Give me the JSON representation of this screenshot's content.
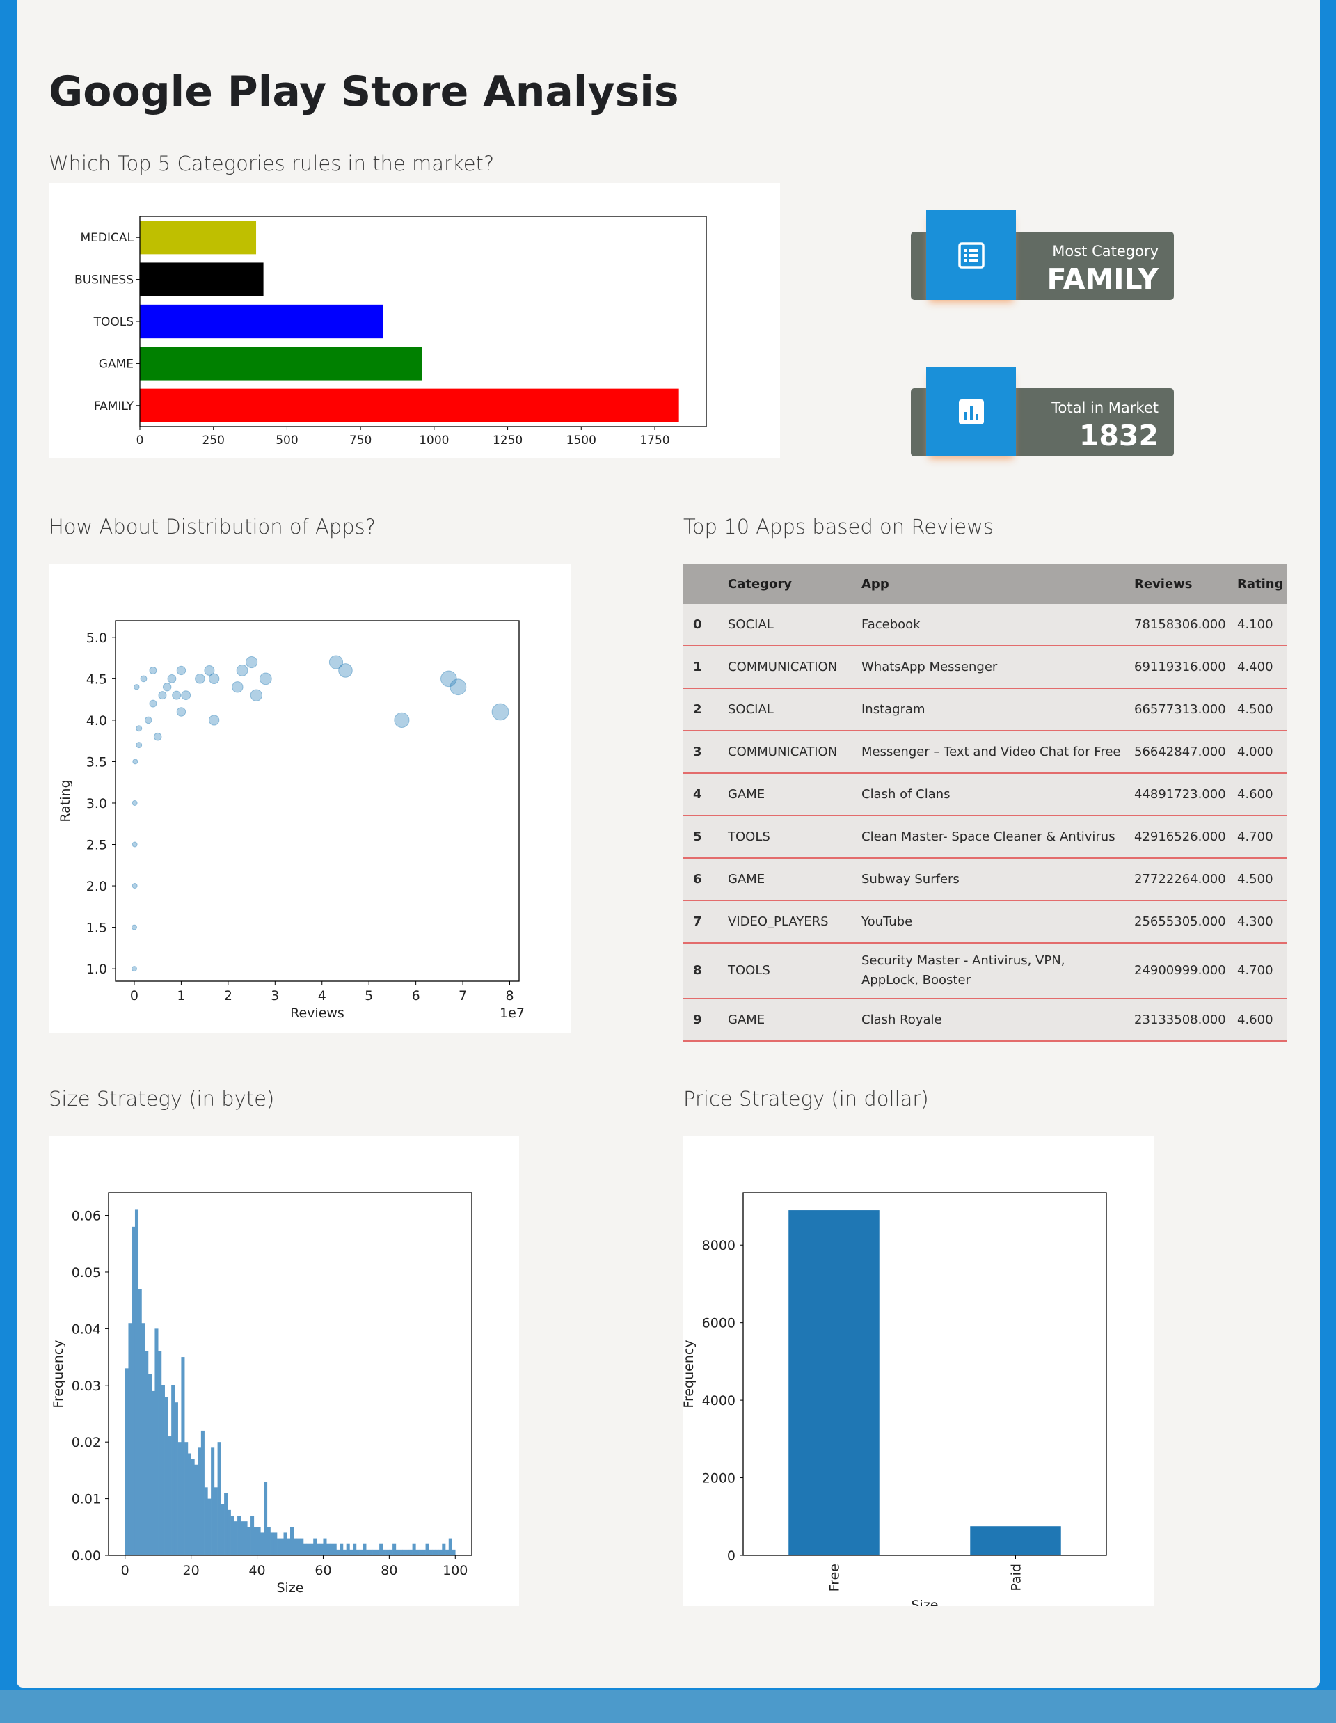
{
  "page": {
    "title": "Google Play Store Analysis",
    "sections": {
      "top_categories": "Which Top 5 Categories rules in the market?",
      "distribution": "How About Distribution of Apps?",
      "top_reviews": "Top 10 Apps based on Reviews",
      "size_strategy": "Size Strategy (in byte)",
      "price_strategy": "Price Strategy (in dollar)"
    }
  },
  "stats": [
    {
      "label": "Most Category",
      "value": "FAMILY",
      "icon": "list-icon"
    },
    {
      "label": "Total in Market",
      "value": "1832",
      "icon": "bar-chart-icon"
    }
  ],
  "colors": {
    "accent": "#1a90d9",
    "card_dark": "#626b63",
    "page_bg": "#f5f4f2",
    "frame": "#1588d8"
  },
  "table": {
    "headers": [
      "",
      "Category",
      "App",
      "Reviews",
      "Rating"
    ],
    "rows": [
      {
        "idx": "0",
        "category": "SOCIAL",
        "app": "Facebook",
        "reviews": "78158306.000",
        "rating": "4.100"
      },
      {
        "idx": "1",
        "category": "COMMUNICATION",
        "app": "WhatsApp Messenger",
        "reviews": "69119316.000",
        "rating": "4.400"
      },
      {
        "idx": "2",
        "category": "SOCIAL",
        "app": "Instagram",
        "reviews": "66577313.000",
        "rating": "4.500"
      },
      {
        "idx": "3",
        "category": "COMMUNICATION",
        "app": "Messenger – Text and Video Chat for Free",
        "reviews": "56642847.000",
        "rating": "4.000"
      },
      {
        "idx": "4",
        "category": "GAME",
        "app": "Clash of Clans",
        "reviews": "44891723.000",
        "rating": "4.600"
      },
      {
        "idx": "5",
        "category": "TOOLS",
        "app": "Clean Master- Space Cleaner & Antivirus",
        "reviews": "42916526.000",
        "rating": "4.700"
      },
      {
        "idx": "6",
        "category": "GAME",
        "app": "Subway Surfers",
        "reviews": "27722264.000",
        "rating": "4.500"
      },
      {
        "idx": "7",
        "category": "VIDEO_PLAYERS",
        "app": "YouTube",
        "reviews": "25655305.000",
        "rating": "4.300"
      },
      {
        "idx": "8",
        "category": "TOOLS",
        "app": "Security Master - Antivirus, VPN, AppLock, Booster",
        "reviews": "24900999.000",
        "rating": "4.700"
      },
      {
        "idx": "9",
        "category": "GAME",
        "app": "Clash Royale",
        "reviews": "23133508.000",
        "rating": "4.600"
      }
    ]
  },
  "chart_data": [
    {
      "type": "bar",
      "orientation": "horizontal",
      "categories": [
        "FAMILY",
        "GAME",
        "TOOLS",
        "BUSINESS",
        "MEDICAL"
      ],
      "values": [
        1832,
        959,
        827,
        420,
        395
      ],
      "colors": [
        "#ff0000",
        "#008000",
        "#0000ff",
        "#000000",
        "#bfbf00"
      ],
      "xlim": [
        0,
        1925
      ],
      "xticks": [
        "0",
        "250",
        "500",
        "750",
        "1000",
        "1250",
        "1500",
        "1750"
      ],
      "title": "",
      "xlabel": "",
      "ylabel": ""
    },
    {
      "type": "scatter",
      "xlabel": "Reviews",
      "ylabel": "Rating",
      "x_multiplier_label": "1e7",
      "xlim": [
        -0.4,
        8.2
      ],
      "ylim": [
        0.85,
        5.2
      ],
      "xticks": [
        "0",
        "1",
        "2",
        "3",
        "4",
        "5",
        "6",
        "7",
        "8"
      ],
      "yticks": [
        "1.0",
        "1.5",
        "2.0",
        "2.5",
        "3.0",
        "3.5",
        "4.0",
        "4.5",
        "5.0"
      ],
      "color": "#1f77b4",
      "points": [
        {
          "x": 7.8,
          "y": 4.1
        },
        {
          "x": 6.9,
          "y": 4.4
        },
        {
          "x": 6.7,
          "y": 4.5
        },
        {
          "x": 5.7,
          "y": 4.0
        },
        {
          "x": 4.5,
          "y": 4.6
        },
        {
          "x": 4.3,
          "y": 4.7
        },
        {
          "x": 2.8,
          "y": 4.5
        },
        {
          "x": 2.6,
          "y": 4.3
        },
        {
          "x": 2.5,
          "y": 4.7
        },
        {
          "x": 2.2,
          "y": 4.4
        },
        {
          "x": 2.3,
          "y": 4.6
        },
        {
          "x": 1.7,
          "y": 4.5
        },
        {
          "x": 1.7,
          "y": 4.0
        },
        {
          "x": 1.6,
          "y": 4.6
        },
        {
          "x": 1.4,
          "y": 4.5
        },
        {
          "x": 1.1,
          "y": 4.3
        },
        {
          "x": 1.0,
          "y": 4.1
        },
        {
          "x": 1.0,
          "y": 4.6
        },
        {
          "x": 0.9,
          "y": 4.3
        },
        {
          "x": 0.8,
          "y": 4.5
        },
        {
          "x": 0.7,
          "y": 4.4
        },
        {
          "x": 0.6,
          "y": 4.3
        },
        {
          "x": 0.5,
          "y": 3.8
        },
        {
          "x": 0.4,
          "y": 4.2
        },
        {
          "x": 0.4,
          "y": 4.6
        },
        {
          "x": 0.3,
          "y": 4.0
        },
        {
          "x": 0.2,
          "y": 4.5
        },
        {
          "x": 0.1,
          "y": 3.9
        },
        {
          "x": 0.1,
          "y": 3.7
        },
        {
          "x": 0.05,
          "y": 4.4
        },
        {
          "x": 0.02,
          "y": 3.5
        },
        {
          "x": 0.01,
          "y": 3.0
        },
        {
          "x": 0.01,
          "y": 2.5
        },
        {
          "x": 0.01,
          "y": 2.0
        },
        {
          "x": 0.0,
          "y": 1.5
        },
        {
          "x": 0.0,
          "y": 1.0
        }
      ]
    },
    {
      "type": "bar",
      "subtype": "histogram",
      "xlabel": "Size",
      "ylabel": "Frequency",
      "xlim": [
        -5,
        105
      ],
      "ylim": [
        0,
        0.064
      ],
      "xticks": [
        "0",
        "20",
        "40",
        "60",
        "80",
        "100"
      ],
      "yticks": [
        "0.00",
        "0.01",
        "0.02",
        "0.03",
        "0.04",
        "0.05",
        "0.06"
      ],
      "bin_width": 1,
      "bin_start": 0,
      "color": "#5a99c8",
      "values": [
        0.033,
        0.041,
        0.058,
        0.061,
        0.047,
        0.041,
        0.036,
        0.032,
        0.029,
        0.04,
        0.036,
        0.03,
        0.028,
        0.021,
        0.03,
        0.027,
        0.02,
        0.035,
        0.02,
        0.018,
        0.017,
        0.016,
        0.019,
        0.022,
        0.012,
        0.01,
        0.019,
        0.012,
        0.02,
        0.009,
        0.011,
        0.008,
        0.007,
        0.006,
        0.007,
        0.006,
        0.006,
        0.005,
        0.007,
        0.005,
        0.005,
        0.004,
        0.013,
        0.005,
        0.004,
        0.004,
        0.003,
        0.003,
        0.004,
        0.003,
        0.005,
        0.003,
        0.003,
        0.003,
        0.002,
        0.002,
        0.002,
        0.003,
        0.002,
        0.002,
        0.003,
        0.002,
        0.002,
        0.002,
        0.001,
        0.002,
        0.001,
        0.002,
        0.001,
        0.002,
        0.001,
        0.001,
        0.002,
        0.001,
        0.001,
        0.001,
        0.001,
        0.002,
        0.001,
        0.001,
        0.001,
        0.002,
        0.001,
        0.001,
        0.001,
        0.001,
        0.001,
        0.002,
        0.001,
        0.001,
        0.001,
        0.002,
        0.001,
        0.001,
        0.001,
        0.001,
        0.002,
        0.001,
        0.003,
        0.001
      ]
    },
    {
      "type": "bar",
      "categories": [
        "Free",
        "Paid"
      ],
      "values": [
        8900,
        750
      ],
      "xlabel": "Size",
      "ylabel": "Frequency",
      "ylim": [
        0,
        9350
      ],
      "yticks": [
        "0",
        "2000",
        "4000",
        "6000",
        "8000"
      ],
      "color": "#1f77b4"
    }
  ]
}
